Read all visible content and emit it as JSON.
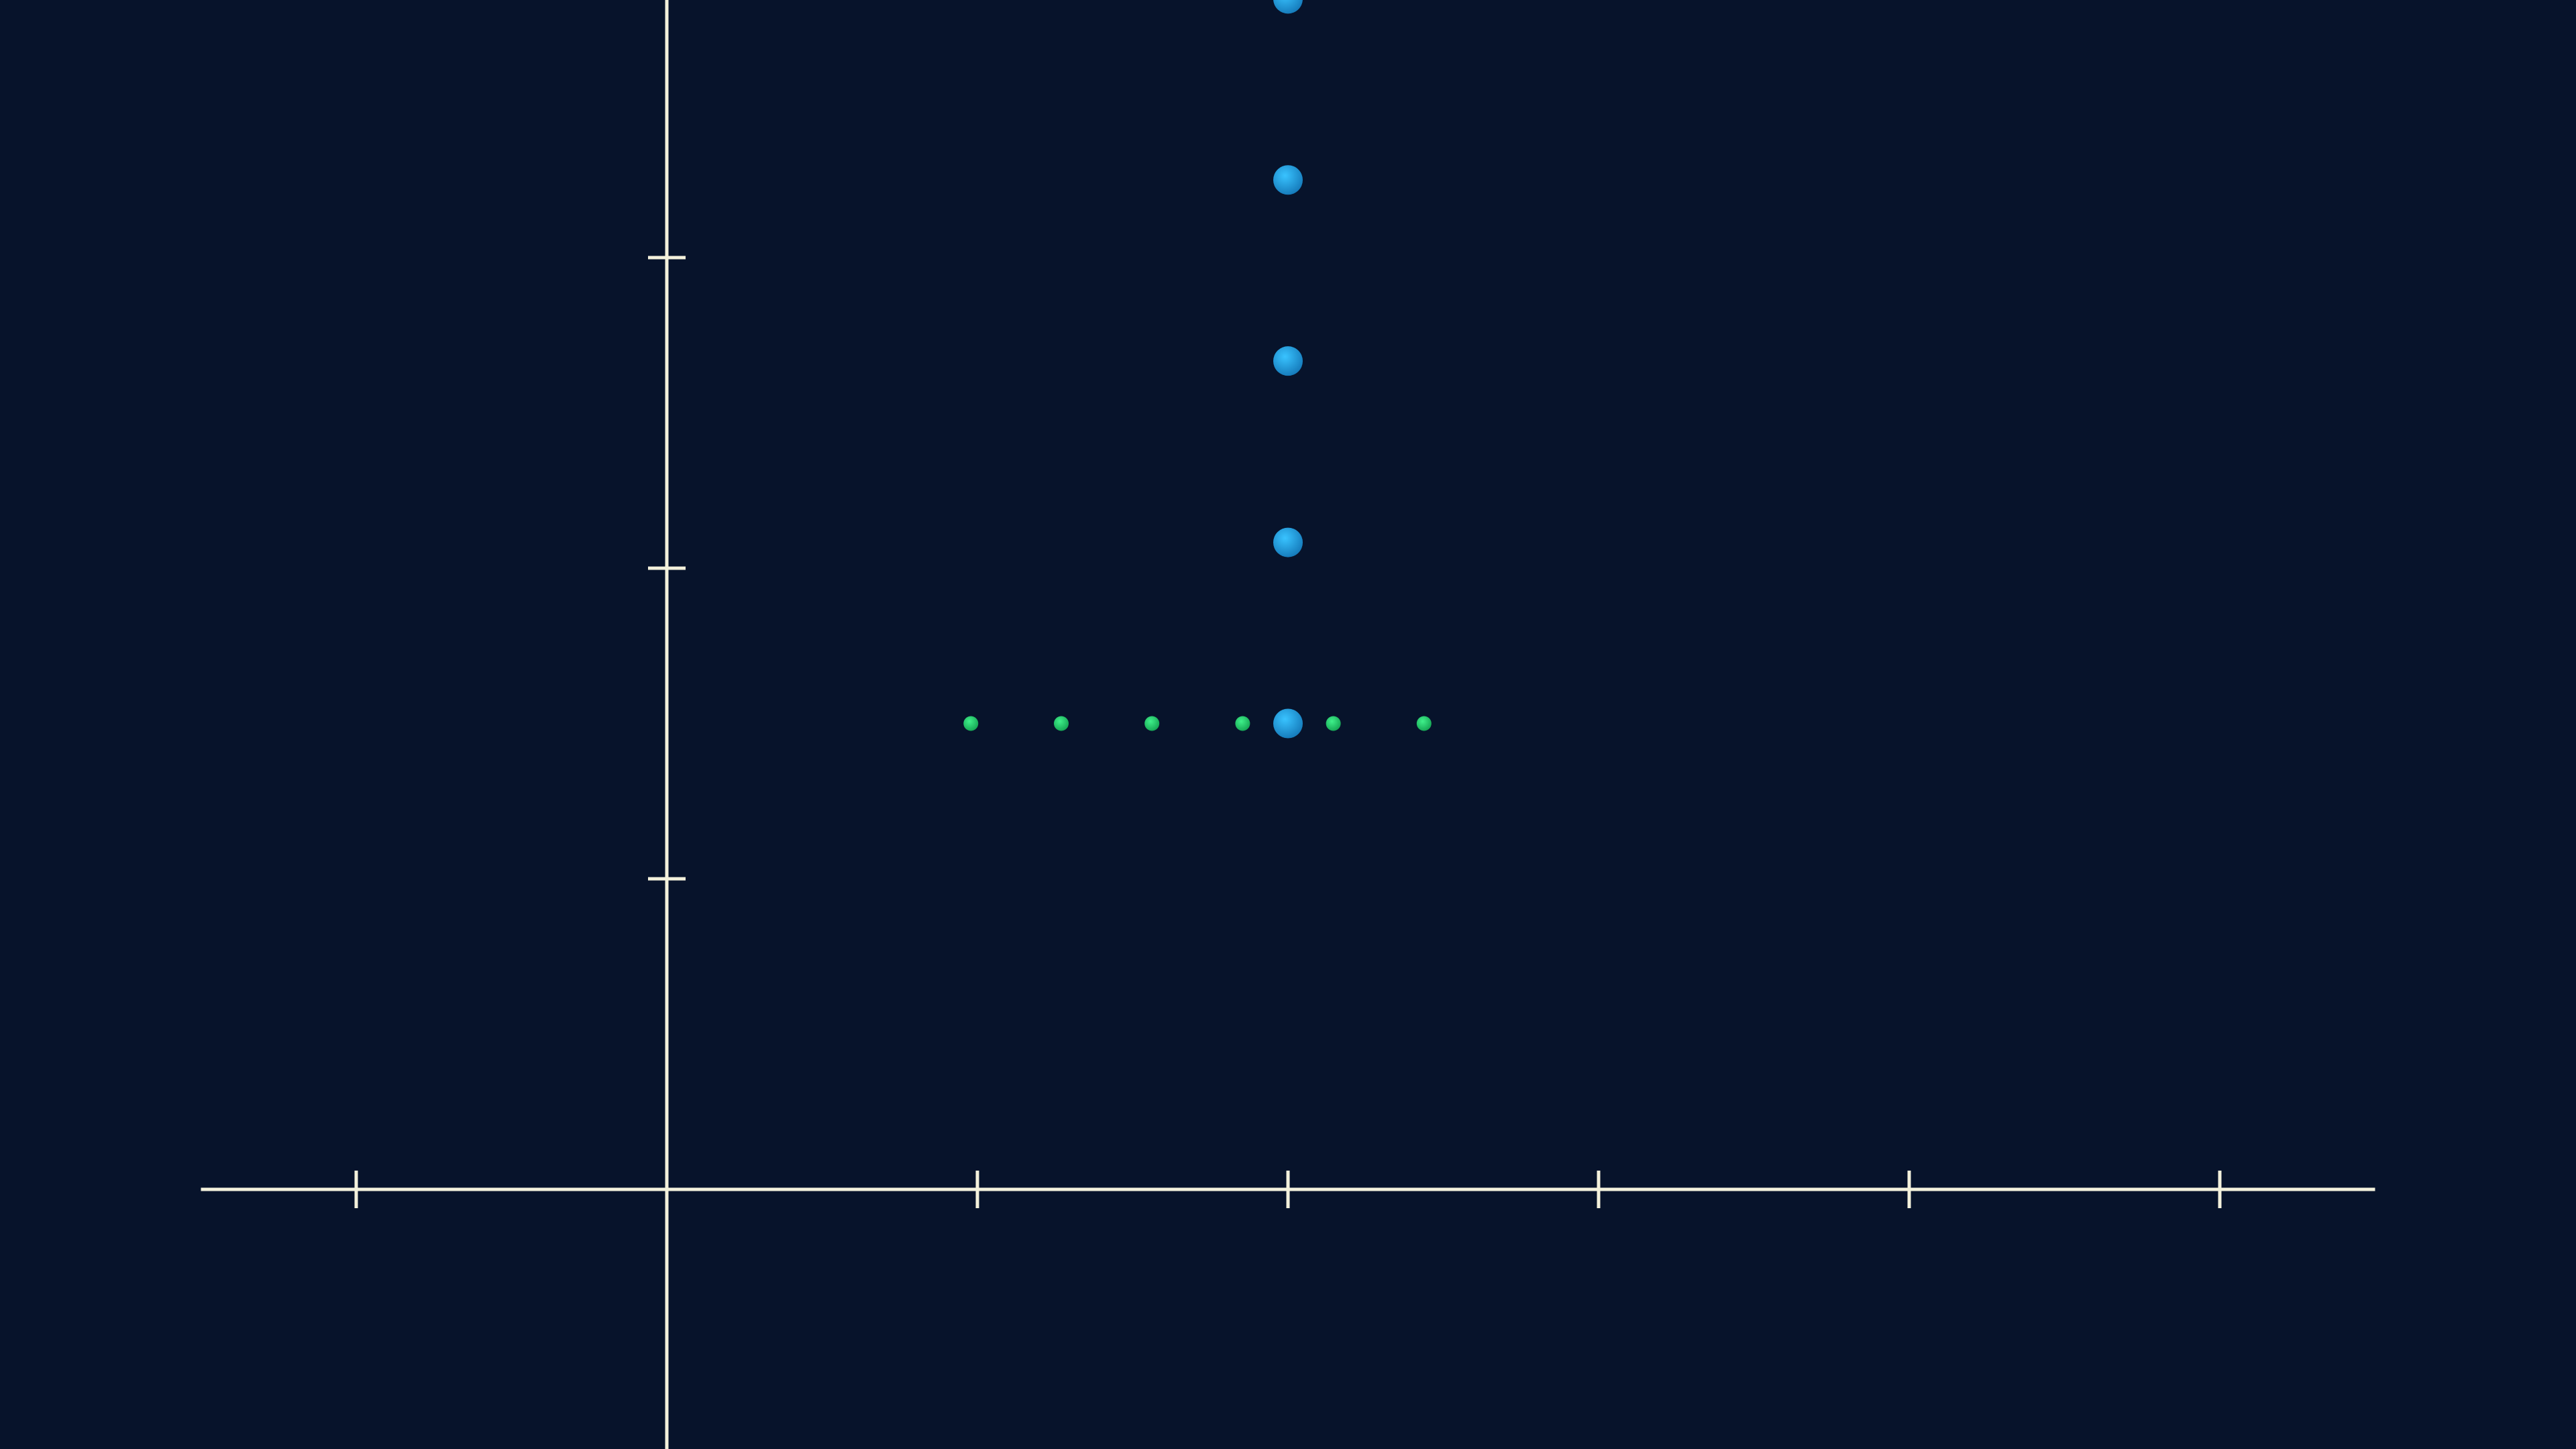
{
  "chart_data": {
    "type": "scatter",
    "title": "",
    "xlabel": "",
    "ylabel": "",
    "xlim": [
      -1.5,
      5.5
    ],
    "ylim": [
      -0.85,
      3.82
    ],
    "x_ticks": [
      -1,
      1,
      2,
      3,
      4,
      5
    ],
    "y_ticks": [
      1,
      2,
      3
    ],
    "grid": false,
    "legend": "none",
    "series": [
      {
        "color": "#1fa8e8",
        "points": [
          [
            2,
            1.5
          ],
          [
            2,
            2.083
          ],
          [
            2,
            2.667
          ],
          [
            2,
            3.25
          ],
          [
            2,
            3.833
          ]
        ]
      },
      {
        "color": "#22d66b",
        "points": [
          [
            0.979,
            1.5
          ],
          [
            1.27,
            1.5
          ],
          [
            1.562,
            1.5
          ],
          [
            1.854,
            1.5
          ],
          [
            2.146,
            1.5
          ],
          [
            2.438,
            1.5
          ]
        ]
      }
    ],
    "colors": {
      "background": "#07132b",
      "axis": "#f3f1dc"
    }
  }
}
